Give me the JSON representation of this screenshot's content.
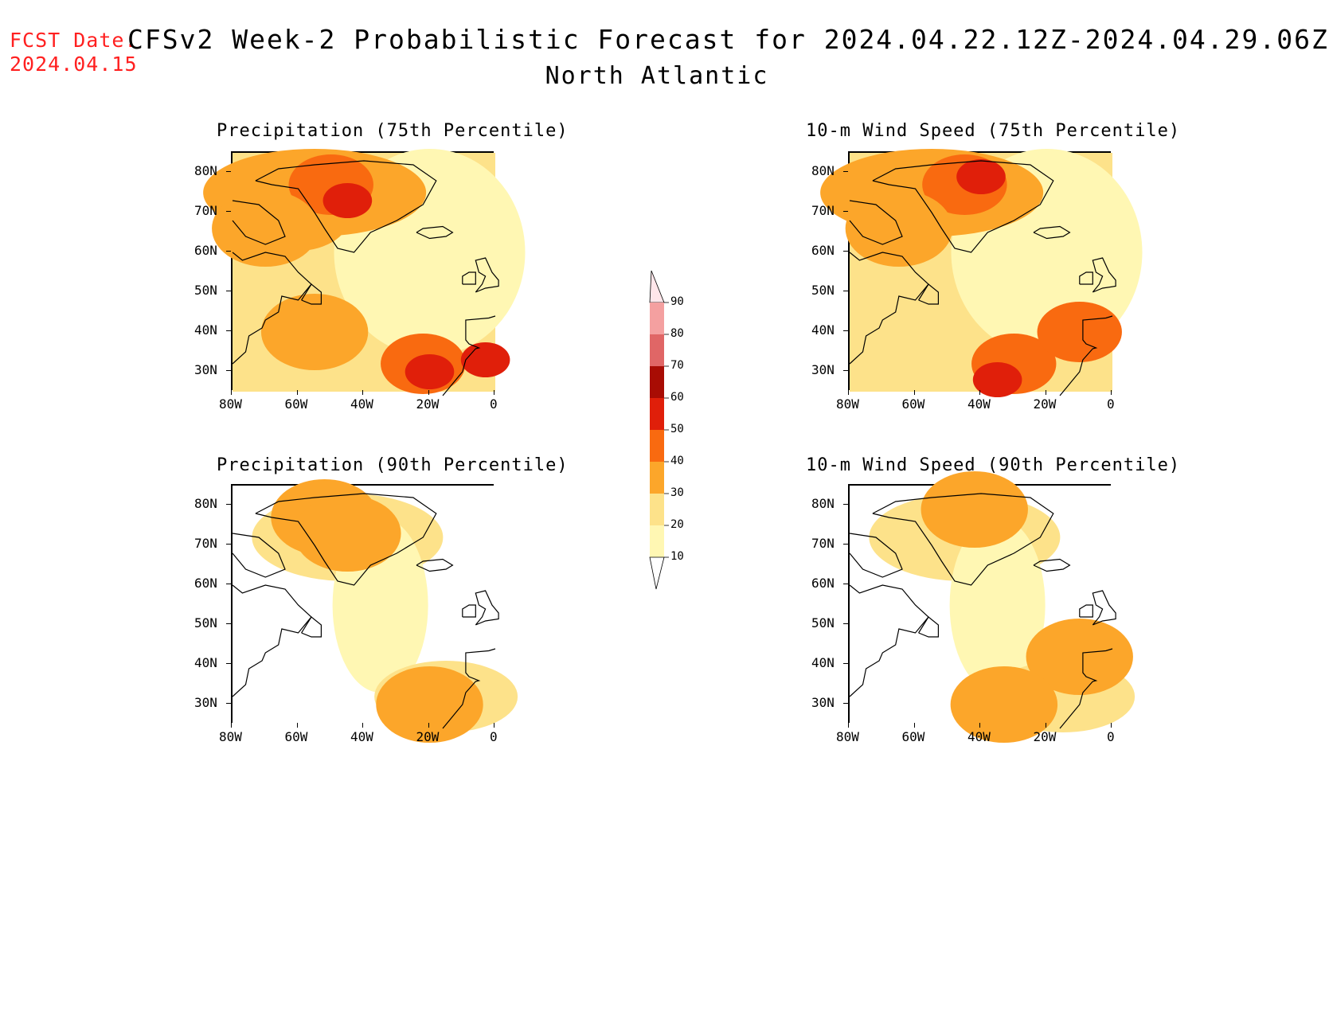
{
  "header": {
    "fcst_label": "FCST Date:",
    "fcst_date": "2024.04.15",
    "title": "CFSv2 Week-2 Probabilistic Forecast for 2024.04.22.12Z-2024.04.29.06Z",
    "region": "North Atlantic"
  },
  "colors": {
    "c10": "#fff7b3",
    "c20": "#fde28a",
    "c30": "#fca62a",
    "c40": "#f96a10",
    "c50": "#e01f0a",
    "c60": "#a80c04",
    "c70": "#e06666",
    "c80": "#f4a0a0",
    "c90": "#ffe6ea",
    "coast": "#000000"
  },
  "axes": {
    "lon_labels": [
      "80W",
      "60W",
      "40W",
      "20W",
      "0"
    ],
    "lat_labels": [
      "80N",
      "70N",
      "60N",
      "50N",
      "40N",
      "30N"
    ],
    "lon_range": [
      -80,
      0
    ],
    "lat_range": [
      25,
      85
    ]
  },
  "panels": [
    {
      "title": "Precipitation (75th Percentile)",
      "variable": "precipitation",
      "percentile": "75th",
      "regions": [
        {
          "lon": -60,
          "lat": 70,
          "level": 30
        },
        {
          "lon": -50,
          "lat": 77,
          "level": 40
        },
        {
          "lon": -45,
          "lat": 73,
          "level": 50
        },
        {
          "lon": -70,
          "lat": 66,
          "level": 30
        },
        {
          "lon": -55,
          "lat": 40,
          "level": 30
        },
        {
          "lon": -22,
          "lat": 32,
          "level": 40
        },
        {
          "lon": -20,
          "lat": 30,
          "level": 50
        },
        {
          "lon": -3,
          "lat": 33,
          "level": 50
        }
      ]
    },
    {
      "title": "10-m Wind Speed (75th Percentile)",
      "variable": "wind_speed",
      "percentile": "75th",
      "regions": [
        {
          "lon": -45,
          "lat": 77,
          "level": 40
        },
        {
          "lon": -40,
          "lat": 79,
          "level": 50
        },
        {
          "lon": -65,
          "lat": 66,
          "level": 30
        },
        {
          "lon": -30,
          "lat": 32,
          "level": 40
        },
        {
          "lon": -10,
          "lat": 40,
          "level": 40
        },
        {
          "lon": -35,
          "lat": 28,
          "level": 50
        }
      ]
    },
    {
      "title": "Precipitation (90th Percentile)",
      "variable": "precipitation",
      "percentile": "90th",
      "regions": [
        {
          "lon": -52,
          "lat": 77,
          "level": 30
        },
        {
          "lon": -45,
          "lat": 73,
          "level": 30
        },
        {
          "lon": -20,
          "lat": 30,
          "level": 30
        }
      ]
    },
    {
      "title": "10-m Wind Speed (90th Percentile)",
      "variable": "wind_speed",
      "percentile": "90th",
      "regions": [
        {
          "lon": -42,
          "lat": 79,
          "level": 30
        },
        {
          "lon": -10,
          "lat": 42,
          "level": 30
        },
        {
          "lon": -33,
          "lat": 30,
          "level": 30
        }
      ]
    }
  ],
  "colorbar": {
    "levels": [
      "10",
      "20",
      "30",
      "40",
      "50",
      "60",
      "70",
      "80",
      "90"
    ]
  }
}
